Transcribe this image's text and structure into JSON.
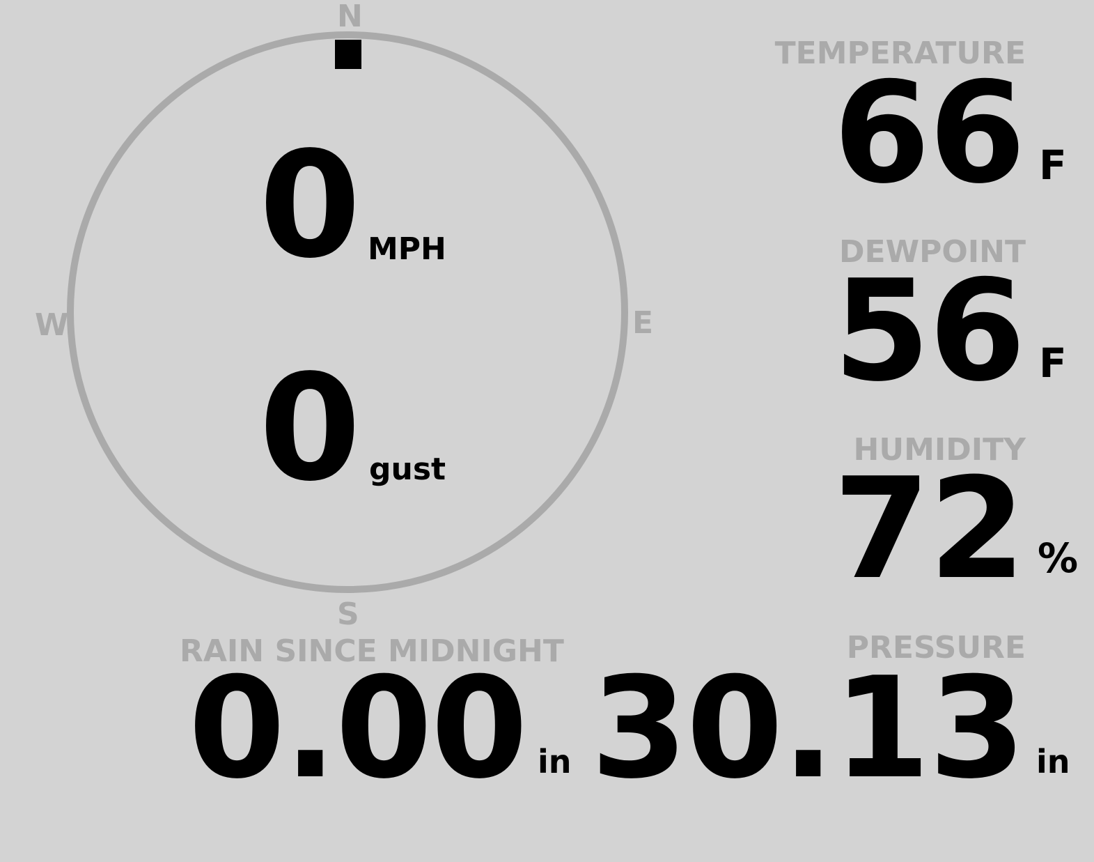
{
  "wind": {
    "direction_degrees": 0,
    "cardinals": {
      "n": "N",
      "e": "E",
      "s": "S",
      "w": "W"
    },
    "speed": "0",
    "speed_unit": "MPH",
    "gust": "0",
    "gust_unit": "gust"
  },
  "temperature": {
    "label": "TEMPERATURE",
    "value": "66",
    "unit": "F"
  },
  "dewpoint": {
    "label": "DEWPOINT",
    "value": "56",
    "unit": "F"
  },
  "humidity": {
    "label": "HUMIDITY",
    "value": "72",
    "unit": "%"
  },
  "rain": {
    "label": "RAIN SINCE MIDNIGHT",
    "value": "0.00",
    "unit": "in"
  },
  "pressure": {
    "label": "PRESSURE",
    "value": "30.13",
    "unit": "in"
  },
  "colors": {
    "background": "#d3d3d3",
    "label": "#aaaaaa",
    "value": "#000000",
    "ring": "#aaaaaa"
  }
}
